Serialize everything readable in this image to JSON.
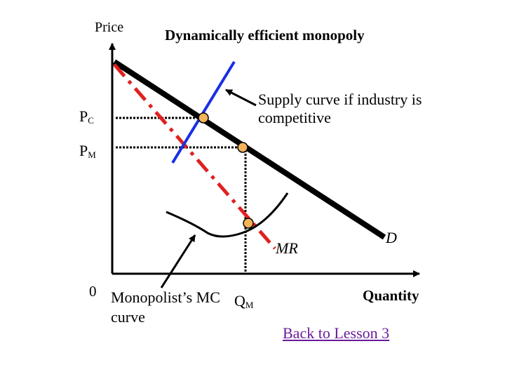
{
  "title": "Dynamically efficient monopoly",
  "axes": {
    "y_label": "Price",
    "x_label": "Quantity",
    "origin": "0"
  },
  "prices": {
    "pc": {
      "main": "P",
      "sub": "C"
    },
    "pm": {
      "main": "P",
      "sub": "M"
    }
  },
  "quantity": {
    "qm": {
      "main": "Q",
      "sub": "M"
    }
  },
  "annotations": {
    "supply_note": "Supply curve if industry is competitive",
    "mc_note": "Monopolist’s MC curve"
  },
  "curves": {
    "demand": {
      "label": "D",
      "color": "#000000"
    },
    "marginal_revenue": {
      "label": "MR",
      "color": "#e02020"
    },
    "competitive_supply": {
      "color": "#1a2ee6"
    },
    "monopolist_mc": {
      "color": "#000000"
    }
  },
  "point_color": "#f2b35a",
  "link": {
    "label": "Back to Lesson 3"
  }
}
